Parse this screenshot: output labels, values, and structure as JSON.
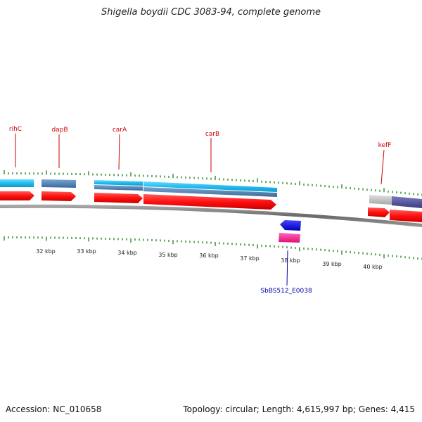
{
  "title": "Shigella boydii CDC 3083-94, complete genome",
  "footer": {
    "accession": "Accession: NC_010658",
    "summary": "Topology: circular; Length: 4,615,997 bp; Genes: 4,415"
  },
  "gene_labels": [
    {
      "name": "rihC",
      "color": "#cc0000"
    },
    {
      "name": "dapB",
      "color": "#cc0000"
    },
    {
      "name": "carA",
      "color": "#cc0000"
    },
    {
      "name": "carB",
      "color": "#cc0000"
    },
    {
      "name": "kefF",
      "color": "#cc0000"
    },
    {
      "name": "SbBS512_E0038",
      "color": "#0000aa"
    }
  ],
  "scale_labels": [
    "32 kbp",
    "33 kbp",
    "34 kbp",
    "35 kbp",
    "36 kbp",
    "37 kbp",
    "38 kbp",
    "39 kbp",
    "40 kbp"
  ],
  "colors": {
    "forward_gene": "#ff0000",
    "reverse_gene": "#0000ff",
    "pink_feature": "#ff3399",
    "backbone": "#8a8a8a",
    "tick": "#2a8a2a",
    "cds_band_light": "#33ccff",
    "cds_band_steel": "#4f7fb0",
    "cds_band_purple": "#55559a",
    "cds_band_grey": "#c0c0c0"
  }
}
